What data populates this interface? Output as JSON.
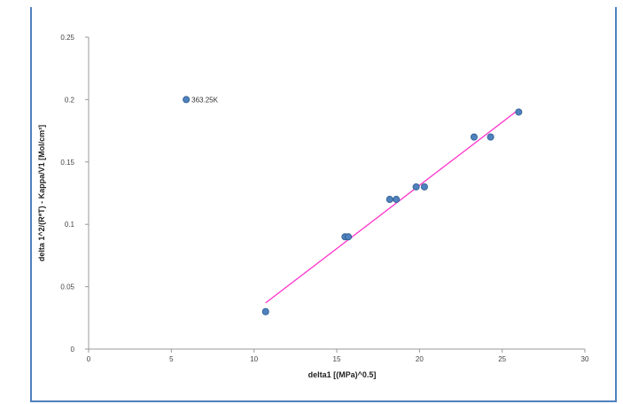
{
  "chart_data": {
    "type": "scatter",
    "xlabel": "delta1 [(MPa)^0.5]",
    "ylabel": "delta 1^2/(R*T) - Kappa/V1 [Mol/cm³]",
    "xlim": [
      0,
      30
    ],
    "ylim": [
      0,
      0.25
    ],
    "x_ticks": [
      "0",
      "5",
      "10",
      "15",
      "20",
      "25",
      "30"
    ],
    "y_ticks": [
      "0",
      "0.05",
      "0.1",
      "0.15",
      "0.2",
      "0.25"
    ],
    "grid": false,
    "legend": "none",
    "points": [
      {
        "x": 10.7,
        "y": 0.03
      },
      {
        "x": 15.5,
        "y": 0.09
      },
      {
        "x": 15.7,
        "y": 0.09
      },
      {
        "x": 18.2,
        "y": 0.12
      },
      {
        "x": 18.6,
        "y": 0.12
      },
      {
        "x": 19.8,
        "y": 0.13
      },
      {
        "x": 20.3,
        "y": 0.13
      },
      {
        "x": 23.3,
        "y": 0.17
      },
      {
        "x": 24.3,
        "y": 0.17
      },
      {
        "x": 26.0,
        "y": 0.19
      },
      {
        "x": 5.9,
        "y": 0.2,
        "label": "363.25K"
      }
    ],
    "trendline": {
      "x": [
        10.7,
        26.0
      ],
      "y": [
        0.037,
        0.192
      ]
    },
    "colors": {
      "marker": "#4f81bd",
      "marker_edge": "#2c5b8f",
      "trendline": "#ff33cc",
      "frame": "#4f81bd"
    }
  }
}
